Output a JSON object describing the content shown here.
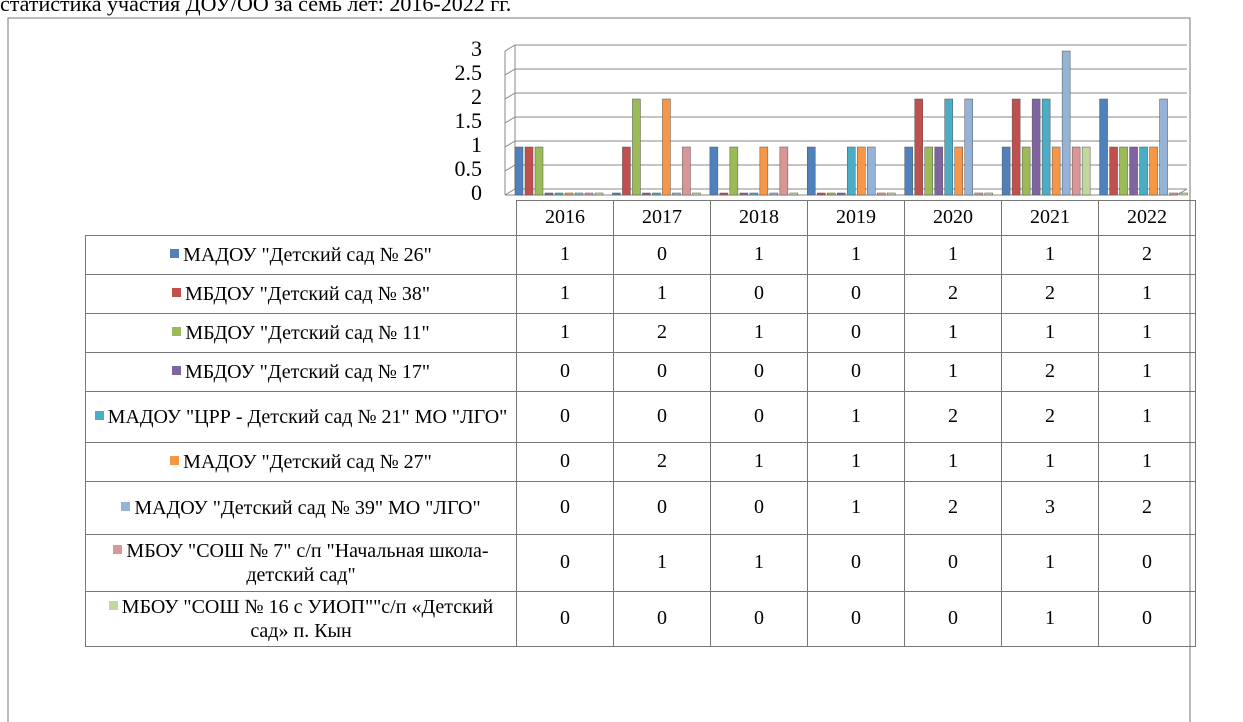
{
  "chart_data": {
    "type": "bar",
    "title": "статистика участия ДОУ/ОО за семь лет: 2016-2022 гг.",
    "categories": [
      "2016",
      "2017",
      "2018",
      "2019",
      "2020",
      "2021",
      "2022"
    ],
    "ylim": [
      0,
      3
    ],
    "yticks": [
      0,
      0.5,
      1,
      1.5,
      2,
      2.5,
      3
    ],
    "grid": true,
    "series": [
      {
        "name": "МАДОУ \"Детский сад № 26\"",
        "color": "#4f81bd",
        "values": [
          1,
          0,
          1,
          1,
          1,
          1,
          2
        ]
      },
      {
        "name": "МБДОУ  \"Детский сад № 38\"",
        "color": "#c0504d",
        "values": [
          1,
          1,
          0,
          0,
          2,
          2,
          1
        ]
      },
      {
        "name": "МБДОУ \"Детский сад № 11\"",
        "color": "#9bbb59",
        "values": [
          1,
          2,
          1,
          0,
          1,
          1,
          1
        ]
      },
      {
        "name": "МБДОУ \"Детский сад № 17\"",
        "color": "#8064a2",
        "values": [
          0,
          0,
          0,
          0,
          1,
          2,
          1
        ]
      },
      {
        "name": "МАДОУ \"ЦРР - Детский сад № 21\" МО \"ЛГО\"",
        "color": "#4bacc6",
        "values": [
          0,
          0,
          0,
          1,
          2,
          2,
          1
        ]
      },
      {
        "name": "МАДОУ \"Детский сад № 27\"",
        "color": "#f79646",
        "values": [
          0,
          2,
          1,
          1,
          1,
          1,
          1
        ]
      },
      {
        "name": "МАДОУ \"Детский сад № 39\" МО \"ЛГО\"",
        "color": "#95b3d7",
        "values": [
          0,
          0,
          0,
          1,
          2,
          3,
          2
        ]
      },
      {
        "name": "МБОУ \"СОШ № 7\" с/п \"Начальная школа-детский сад\"",
        "color": "#d99694",
        "values": [
          0,
          1,
          1,
          0,
          0,
          1,
          0
        ]
      },
      {
        "name": "МБОУ \"СОШ № 16 с УИОП\"\"с/п «Детский сад» п. Кын",
        "color": "#c3d69b",
        "values": [
          0,
          0,
          0,
          0,
          0,
          1,
          0
        ]
      }
    ]
  }
}
